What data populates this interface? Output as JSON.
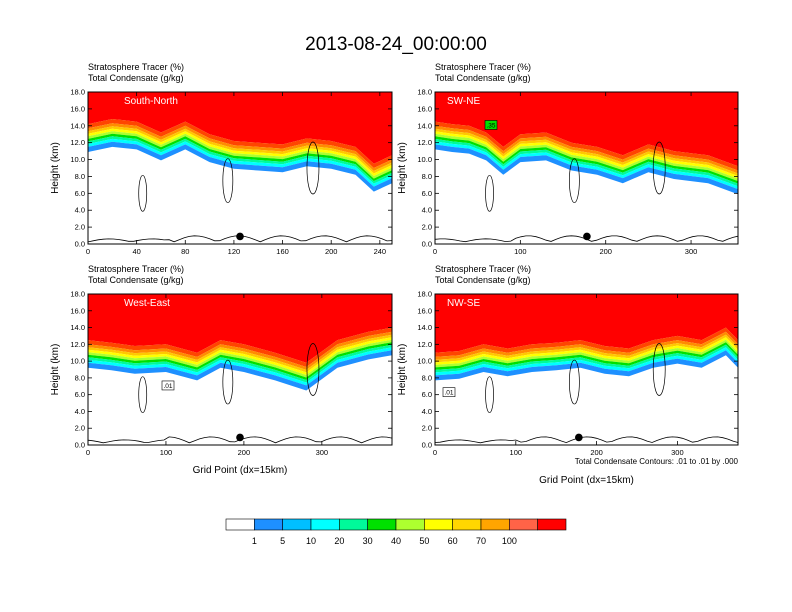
{
  "title": "2013-08-24_00:00:00",
  "colorbar": {
    "labels": [
      "1",
      "5",
      "10",
      "20",
      "30",
      "40",
      "50",
      "60",
      "70",
      "100"
    ],
    "colors": [
      "#ffffff",
      "#1e90ff",
      "#00bfff",
      "#00ffff",
      "#00fa9a",
      "#00e000",
      "#adff2f",
      "#ffff00",
      "#ffd700",
      "#ffa500",
      "#ff6347",
      "#ff0000"
    ]
  },
  "chart_data": [
    {
      "type": "heatmap",
      "name": "South-North",
      "label": "South-North",
      "subtitle1": "Stratosphere Tracer   (%)",
      "subtitle2": "Total Condensate   (g/kg)",
      "xlabel": "",
      "ylabel": "Height (km)",
      "xlim": [
        0,
        250
      ],
      "ylim": [
        0,
        18
      ],
      "xticks": [
        "0",
        "40",
        "80",
        "120",
        "160",
        "200",
        "240"
      ],
      "yticks": [
        "0.0",
        "2.0",
        "4.0",
        "6.0",
        "8.0",
        "10.0",
        "12.0",
        "14.0",
        "16.0",
        "18.0"
      ],
      "tropopause_x": [
        0,
        20,
        40,
        60,
        80,
        100,
        120,
        140,
        160,
        180,
        200,
        220,
        235,
        250
      ],
      "tropopause_km": [
        14.2,
        14.8,
        14.5,
        13.2,
        14.5,
        13.0,
        12.2,
        12.0,
        11.8,
        12.5,
        12.2,
        11.5,
        9.5,
        10.5
      ],
      "marker_x": 125,
      "contour_label": ""
    },
    {
      "type": "heatmap",
      "name": "SW-NE",
      "label": "SW-NE",
      "subtitle1": "Stratosphere Tracer   (%)",
      "subtitle2": "Total Condensate   (g/kg)",
      "xlabel": "",
      "ylabel": "Height (km)",
      "xlim": [
        0,
        355
      ],
      "ylim": [
        0,
        18
      ],
      "xticks": [
        "0",
        "100",
        "200",
        "300"
      ],
      "yticks": [
        "0.0",
        "2.0",
        "4.0",
        "6.0",
        "8.0",
        "10.0",
        "12.0",
        "14.0",
        "16.0",
        "18.0"
      ],
      "tropopause_x": [
        0,
        20,
        40,
        60,
        80,
        100,
        130,
        160,
        190,
        220,
        250,
        280,
        320,
        355
      ],
      "tropopause_km": [
        14.5,
        14.2,
        14.0,
        13.2,
        11.5,
        13.0,
        13.2,
        12.0,
        11.5,
        10.5,
        11.8,
        11.0,
        10.5,
        9.2
      ],
      "marker_x": 178,
      "contour_label": ".35"
    },
    {
      "type": "heatmap",
      "name": "West-East",
      "label": "West-East",
      "subtitle1": "Stratosphere Tracer   (%)",
      "subtitle2": "Total Condensate   (g/kg)",
      "xlabel": "Grid Point (dx=15km)",
      "ylabel": "Height (km)",
      "xlim": [
        0,
        390
      ],
      "ylim": [
        0,
        18
      ],
      "xticks": [
        "0",
        "100",
        "200",
        "300"
      ],
      "yticks": [
        "0.0",
        "2.0",
        "4.0",
        "6.0",
        "8.0",
        "10.0",
        "12.0",
        "14.0",
        "16.0",
        "18.0"
      ],
      "tropopause_x": [
        0,
        30,
        60,
        100,
        140,
        170,
        200,
        240,
        280,
        320,
        360,
        390
      ],
      "tropopause_km": [
        12.5,
        12.2,
        11.8,
        12.0,
        11.0,
        12.5,
        12.0,
        11.0,
        9.8,
        12.5,
        13.5,
        14.0
      ],
      "marker_x": 195,
      "contour_label": ".01"
    },
    {
      "type": "heatmap",
      "name": "NW-SE",
      "label": "NW-SE",
      "subtitle1": "Stratosphere Tracer   (%)",
      "subtitle2": "Total Condensate   (g/kg)",
      "xlabel": "Grid Point (dx=15km)",
      "ylabel": "Height (km)",
      "xlim": [
        0,
        375
      ],
      "ylim": [
        0,
        18
      ],
      "xticks": [
        "0",
        "100",
        "200",
        "300"
      ],
      "yticks": [
        "0.0",
        "2.0",
        "4.0",
        "6.0",
        "8.0",
        "10.0",
        "12.0",
        "14.0",
        "16.0",
        "18.0"
      ],
      "tropopause_x": [
        0,
        30,
        60,
        90,
        120,
        150,
        180,
        210,
        240,
        270,
        300,
        330,
        360,
        375
      ],
      "tropopause_km": [
        11.0,
        11.2,
        12.0,
        11.5,
        12.0,
        12.2,
        12.5,
        11.8,
        11.5,
        12.5,
        13.0,
        12.5,
        14.0,
        12.5
      ],
      "marker_x": 178,
      "contour_label": ".01"
    }
  ],
  "footnote": "Total Condensate Contours: .01 to .01 by .000"
}
